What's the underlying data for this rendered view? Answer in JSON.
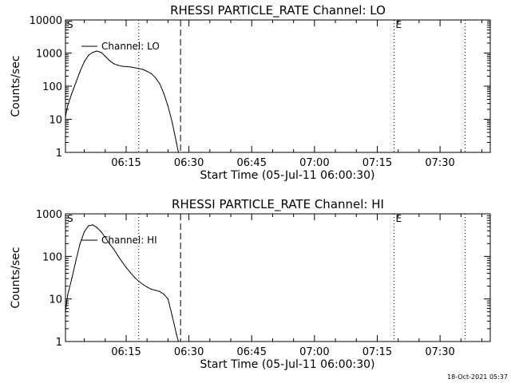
{
  "chart_data": [
    {
      "type": "line",
      "title": "RHESSI PARTICLE_RATE Channel: LO",
      "xlabel": "Start Time (05-Jul-11 06:00:30)",
      "ylabel": "Counts/sec",
      "yscale": "log",
      "ylim": [
        1,
        10000
      ],
      "xlim_minutes_after_0600": [
        0.5,
        102
      ],
      "x_ticks": [
        "06:15",
        "06:30",
        "06:45",
        "07:00",
        "07:15",
        "07:30"
      ],
      "y_ticks": [
        "1",
        "10",
        "100",
        "1000",
        "10000"
      ],
      "legend": "Channel: LO",
      "legend_position": "top-left",
      "markers": [
        {
          "label": "S",
          "time": "06:00:30",
          "style": "marker"
        },
        {
          "label": "",
          "time": "06:18",
          "style": "dotted"
        },
        {
          "label": "",
          "time": "06:28",
          "style": "dashed"
        },
        {
          "label": "E",
          "time": "07:19",
          "style": "dotted"
        },
        {
          "label": "",
          "time": "07:36",
          "style": "dotted"
        }
      ],
      "series": [
        {
          "name": "Channel: LO",
          "x": [
            "06:00:30",
            "06:01",
            "06:02",
            "06:03",
            "06:04",
            "06:05",
            "06:06",
            "06:07",
            "06:08",
            "06:09",
            "06:10",
            "06:11",
            "06:12",
            "06:13",
            "06:14",
            "06:15",
            "06:16",
            "06:17",
            "06:18",
            "06:19",
            "06:20",
            "06:21",
            "06:22",
            "06:23",
            "06:24",
            "06:25",
            "06:26",
            "06:27",
            "06:27:30"
          ],
          "y": [
            12,
            25,
            60,
            130,
            280,
            550,
            850,
            1050,
            1150,
            1050,
            800,
            600,
            480,
            430,
            400,
            390,
            380,
            360,
            340,
            320,
            280,
            240,
            180,
            120,
            60,
            25,
            8,
            2,
            1
          ]
        }
      ]
    },
    {
      "type": "line",
      "title": "RHESSI PARTICLE_RATE Channel: HI",
      "xlabel": "Start Time (05-Jul-11 06:00:30)",
      "ylabel": "Counts/sec",
      "yscale": "log",
      "ylim": [
        1,
        1000
      ],
      "xlim_minutes_after_0600": [
        0.5,
        102
      ],
      "x_ticks": [
        "06:15",
        "06:30",
        "06:45",
        "07:00",
        "07:15",
        "07:30"
      ],
      "y_ticks": [
        "1",
        "10",
        "100",
        "1000"
      ],
      "legend": "Channel: HI",
      "legend_position": "top-left",
      "markers": [
        {
          "label": "S",
          "time": "06:00:30",
          "style": "marker"
        },
        {
          "label": "",
          "time": "06:18",
          "style": "dotted"
        },
        {
          "label": "",
          "time": "06:28",
          "style": "dashed"
        },
        {
          "label": "E",
          "time": "07:19",
          "style": "dotted"
        },
        {
          "label": "",
          "time": "07:36",
          "style": "dotted"
        }
      ],
      "series": [
        {
          "name": "Channel: HI",
          "x": [
            "06:00:30",
            "06:01",
            "06:02",
            "06:03",
            "06:04",
            "06:05",
            "06:06",
            "06:07",
            "06:08",
            "06:09",
            "06:10",
            "06:11",
            "06:12",
            "06:13",
            "06:14",
            "06:15",
            "06:16",
            "06:17",
            "06:18",
            "06:19",
            "06:20",
            "06:21",
            "06:22",
            "06:23",
            "06:24",
            "06:25",
            "06:26",
            "06:27",
            "06:27:30"
          ],
          "y": [
            5,
            12,
            30,
            80,
            200,
            380,
            520,
            550,
            480,
            380,
            280,
            200,
            150,
            105,
            75,
            55,
            42,
            32,
            26,
            22,
            19,
            17,
            16,
            15,
            13,
            10,
            4,
            1.5,
            1
          ]
        }
      ]
    }
  ],
  "footer": {
    "timestamp": "18-Oct-2021 05:37"
  }
}
